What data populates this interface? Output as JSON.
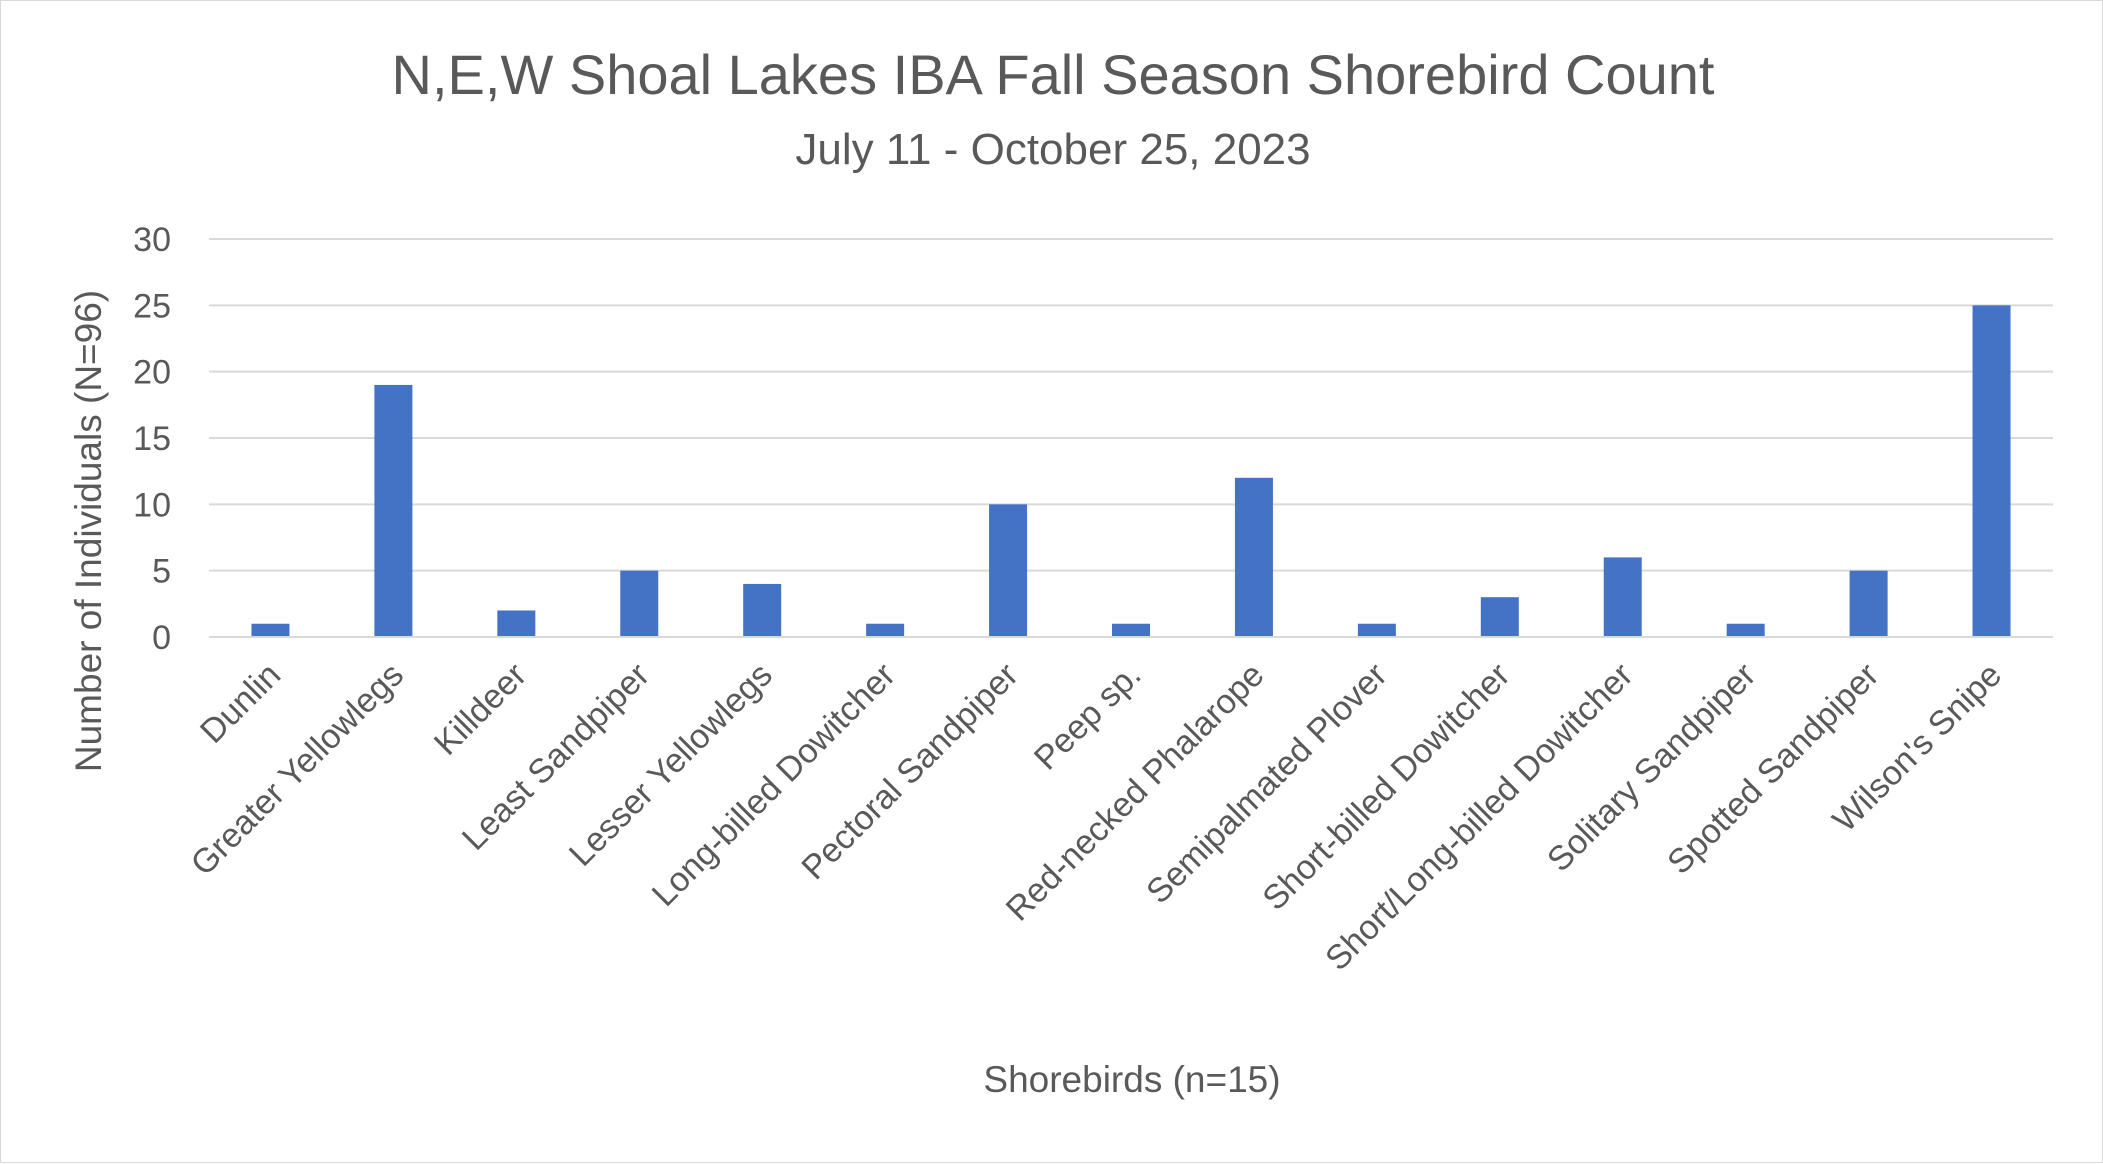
{
  "chart_data": {
    "type": "bar",
    "title": "N,E,W Shoal Lakes IBA Fall Season Shorebird Count",
    "subtitle": "July 11 - October 25, 2023",
    "xlabel": "Shorebirds (n=15)",
    "ylabel": "Number of Individuals (N=96)",
    "ylim": [
      0,
      30
    ],
    "yticks": [
      0,
      5,
      10,
      15,
      20,
      25,
      30
    ],
    "grid": true,
    "legend": "none",
    "bar_color": "#4472c4",
    "categories": [
      "Dunlin",
      "Greater Yellowlegs",
      "Killdeer",
      "Least Sandpiper",
      "Lesser Yellowlegs",
      "Long-billed Dowitcher",
      "Pectoral Sandpiper",
      "Peep sp.",
      "Red-necked Phalarope",
      "Semipalmated Plover",
      "Short-billed Dowitcher",
      "Short/Long-billed Dowitcher",
      "Solitary Sandpiper",
      "Spotted Sandpiper",
      "Wilson's Snipe"
    ],
    "values": [
      1,
      19,
      2,
      5,
      4,
      1,
      10,
      1,
      12,
      1,
      3,
      6,
      1,
      5,
      25
    ]
  }
}
